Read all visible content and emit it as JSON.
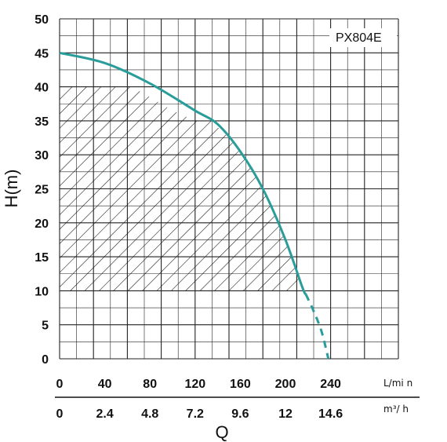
{
  "chart_data": {
    "type": "line",
    "model_label": "PX804E",
    "ylabel": "H(m)",
    "xlabel": "Q",
    "y_ticks": [
      "50",
      "45",
      "40",
      "35",
      "30",
      "25",
      "20",
      "15",
      "10",
      "5",
      "0"
    ],
    "ylim": [
      0,
      50
    ],
    "x_axis_primary": {
      "unit": "L/mi n",
      "ticks": [
        "0",
        "40",
        "80",
        "120",
        "160",
        "200",
        "240"
      ],
      "range": [
        0,
        240
      ]
    },
    "x_axis_secondary": {
      "unit": "m³/ h",
      "ticks": [
        "0",
        "2.4",
        "4.8",
        "7.2",
        "9.6",
        "12",
        "14.6"
      ]
    },
    "grid": true,
    "series": [
      {
        "color": "#2a9d9a",
        "solid_points": [
          [
            0,
            45
          ],
          [
            40,
            43.5
          ],
          [
            80,
            40.5
          ],
          [
            120,
            36.5
          ],
          [
            140,
            34.5
          ],
          [
            160,
            30.5
          ],
          [
            180,
            25
          ],
          [
            200,
            17.5
          ],
          [
            215,
            10.5
          ],
          [
            218,
            9.5
          ]
        ],
        "dashed_points": [
          [
            218,
            9.5
          ],
          [
            225,
            7
          ],
          [
            232,
            4
          ],
          [
            238,
            0
          ]
        ]
      }
    ],
    "operating_region": {
      "label": "hatched",
      "h_range": [
        10,
        40
      ],
      "boundary": [
        [
          0,
          10
        ],
        [
          0,
          40
        ],
        [
          64,
          40
        ],
        [
          80,
          38.5
        ],
        [
          100,
          36.5
        ],
        [
          120,
          35
        ],
        [
          134,
          35
        ],
        [
          150,
          32.5
        ],
        [
          160,
          30.5
        ],
        [
          170,
          28
        ],
        [
          180,
          25
        ],
        [
          190,
          21.5
        ],
        [
          200,
          17.5
        ],
        [
          208,
          14
        ],
        [
          214,
          10
        ]
      ]
    }
  }
}
